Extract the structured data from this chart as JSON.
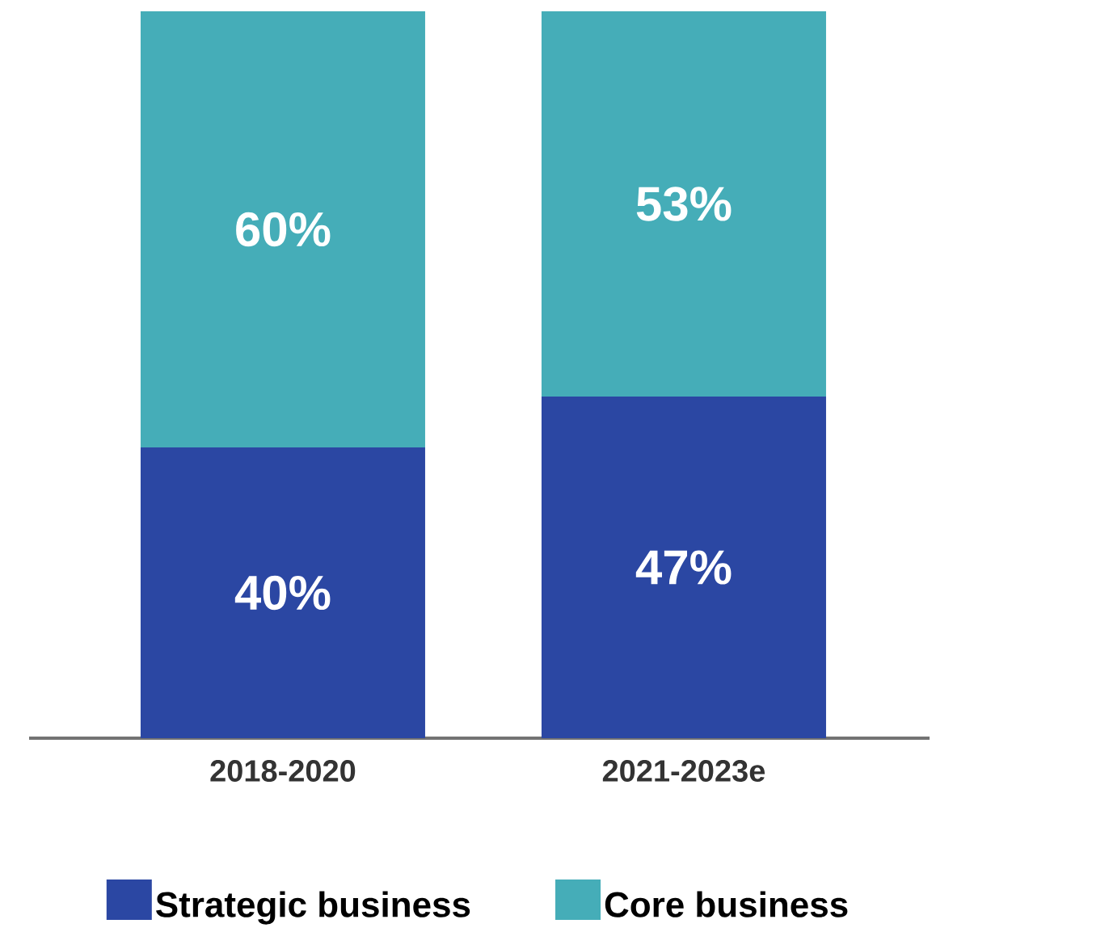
{
  "chart_data": {
    "type": "bar",
    "stacked": true,
    "categories": [
      "2018-2020",
      "2021-2023e"
    ],
    "tick_labels": "x",
    "legend": "bottom",
    "series": [
      {
        "name": "Strategic business",
        "color": "#2b47a3",
        "values": [
          40,
          47
        ],
        "value_labels": [
          "40%",
          "47%"
        ]
      },
      {
        "name": "Core business",
        "color": "#45adb8",
        "values": [
          60,
          53
        ],
        "value_labels": [
          "60%",
          "53%"
        ]
      }
    ]
  }
}
